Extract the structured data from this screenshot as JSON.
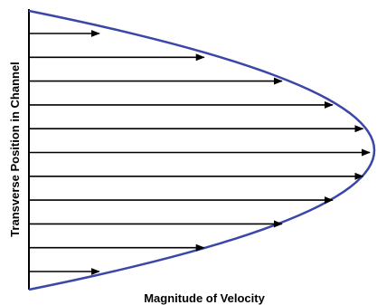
{
  "y_axis_label": "Transverse Position in Channel",
  "x_axis_label": "Magnitude of Velocity",
  "colors": {
    "profile_curve": "#3a47a8",
    "arrows": "#000000",
    "walls": "#000000"
  },
  "profile": {
    "shape": "parabolic",
    "arrow_count": 11,
    "relative_velocities": [
      0.2,
      0.51,
      0.74,
      0.89,
      0.98,
      1.0,
      0.98,
      0.89,
      0.74,
      0.51,
      0.2
    ]
  }
}
